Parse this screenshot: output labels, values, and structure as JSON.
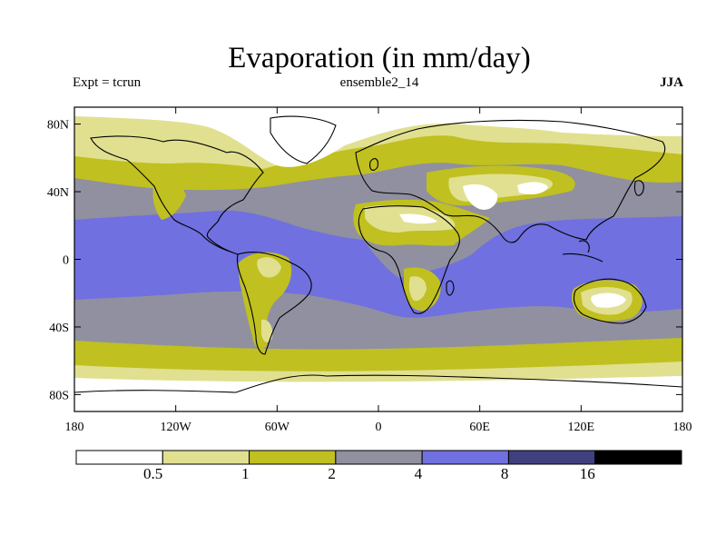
{
  "title": "Evaporation (in mm/day)",
  "subtitle_left": "Expt = tcrun",
  "subtitle_center": "ensemble2_14",
  "subtitle_right": "JJA",
  "map": {
    "projection": "equirectangular",
    "lon_range": [
      -180,
      180
    ],
    "lat_range": [
      -90,
      90
    ],
    "y_ticks": [
      {
        "lat": 80,
        "label": "80N"
      },
      {
        "lat": 40,
        "label": "40N"
      },
      {
        "lat": 0,
        "label": "0"
      },
      {
        "lat": -40,
        "label": "40S"
      },
      {
        "lat": -80,
        "label": "80S"
      }
    ],
    "x_ticks": [
      {
        "lon": -180,
        "label": "180"
      },
      {
        "lon": -120,
        "label": "120W"
      },
      {
        "lon": -60,
        "label": "60W"
      },
      {
        "lon": 0,
        "label": "0"
      },
      {
        "lon": 60,
        "label": "60E"
      },
      {
        "lon": 120,
        "label": "120E"
      },
      {
        "lon": 180,
        "label": "180"
      }
    ]
  },
  "legend": {
    "colors": [
      "#ffffff",
      "#e0e090",
      "#c0c020",
      "#9090a0",
      "#7070e0",
      "#404080",
      "#000000"
    ],
    "labels": [
      "0.5",
      "1",
      "2",
      "4",
      "8",
      "16"
    ]
  }
}
